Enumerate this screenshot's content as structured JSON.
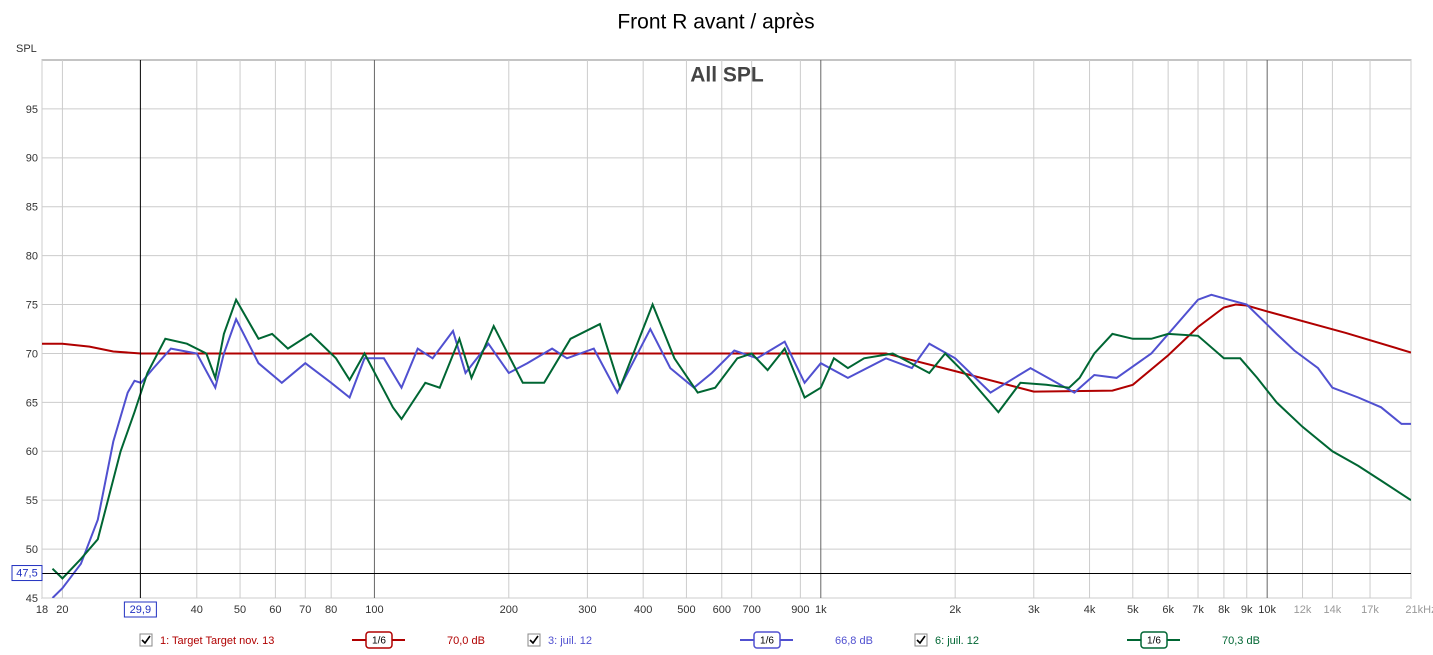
{
  "chart_data": {
    "type": "line",
    "title": "Front R avant / après",
    "annotation": "All SPL",
    "y_label": "SPL",
    "log_x": true,
    "grid": true,
    "xlim": [
      18,
      21000
    ],
    "ylim": [
      45,
      100
    ],
    "yticks": [
      45,
      50,
      55,
      60,
      65,
      70,
      75,
      80,
      85,
      90,
      95
    ],
    "xticks": [
      18,
      20,
      40,
      50,
      60,
      70,
      80,
      100,
      200,
      300,
      400,
      500,
      600,
      700,
      900,
      {
        "value": 1000,
        "label": "1k"
      },
      {
        "value": 2000,
        "label": "2k"
      },
      {
        "value": 3000,
        "label": "3k"
      },
      {
        "value": 4000,
        "label": "4k"
      },
      {
        "value": 5000,
        "label": "5k"
      },
      {
        "value": 6000,
        "label": "6k"
      },
      {
        "value": 7000,
        "label": "7k"
      },
      {
        "value": 8000,
        "label": "8k"
      },
      {
        "value": 9000,
        "label": "9k"
      },
      {
        "value": 10000,
        "label": "10k"
      },
      {
        "value": 12000,
        "label": "12k"
      },
      {
        "value": 14000,
        "label": "14k"
      },
      {
        "value": 17000,
        "label": "17k"
      },
      {
        "value": 21000,
        "label": "21kHz"
      }
    ],
    "cursor": {
      "x": {
        "value": 29.9,
        "label": "29,9"
      },
      "y": {
        "value": 47.5,
        "label": "47,5"
      }
    },
    "series": [
      {
        "name": "1: Target Target nov. 13",
        "color": "#b00000",
        "smoothing": "1/6",
        "level": "70,0 dB",
        "x": [
          18,
          20,
          23,
          26,
          30,
          40,
          100,
          1000,
          1400,
          2000,
          3000,
          4500,
          5000,
          6000,
          7000,
          8000,
          8500,
          9000,
          10000,
          15000,
          21000
        ],
        "values": [
          71,
          71,
          70.7,
          70.2,
          70,
          70,
          70,
          70,
          70,
          68.2,
          66.1,
          66.2,
          66.8,
          69.8,
          72.7,
          74.7,
          75,
          74.9,
          74.3,
          72.1,
          70.1
        ]
      },
      {
        "name": "3: juil. 12",
        "color": "#5050d0",
        "smoothing": "1/6",
        "level": "66,8 dB",
        "x": [
          19,
          20,
          22,
          24,
          26,
          28,
          29,
          30,
          32,
          35,
          40,
          44,
          46,
          49,
          55,
          62,
          70,
          80,
          88,
          95,
          105,
          115,
          125,
          135,
          150,
          160,
          180,
          200,
          220,
          250,
          270,
          310,
          350,
          415,
          460,
          520,
          570,
          640,
          720,
          830,
          920,
          1000,
          1150,
          1400,
          1600,
          1750,
          2000,
          2400,
          2950,
          3700,
          4100,
          4600,
          5500,
          7000,
          7500,
          8200,
          9000,
          10500,
          11500,
          13000,
          14000,
          16000,
          18000,
          20000,
          21000
        ],
        "values": [
          45,
          46,
          48.5,
          53,
          61,
          66,
          67.2,
          67,
          68.5,
          70.5,
          70,
          66.5,
          70,
          73.5,
          69,
          67,
          69,
          67,
          65.5,
          69.5,
          69.5,
          66.5,
          70.5,
          69.5,
          72.3,
          68,
          71,
          68,
          69,
          70.5,
          69.5,
          70.5,
          66,
          72.5,
          68.5,
          66.5,
          68,
          70.3,
          69.5,
          71.2,
          67,
          69,
          67.5,
          69.5,
          68.5,
          71,
          69.5,
          66,
          68.5,
          66,
          67.8,
          67.5,
          70,
          75.5,
          76,
          75.5,
          75,
          72,
          70.3,
          68.5,
          66.5,
          65.5,
          64.5,
          62.8,
          62.8
        ]
      },
      {
        "name": "6: juil. 12",
        "color": "#006633",
        "smoothing": "1/6",
        "level": "70,3 dB",
        "x": [
          19,
          20,
          22,
          24,
          27,
          29,
          31,
          34,
          38,
          42,
          44,
          46,
          49,
          55,
          59,
          64,
          72,
          82,
          88,
          95,
          110,
          115,
          130,
          140,
          155,
          165,
          185,
          215,
          240,
          275,
          320,
          355,
          420,
          470,
          530,
          580,
          650,
          700,
          760,
          830,
          920,
          1000,
          1070,
          1150,
          1250,
          1450,
          1750,
          1900,
          2100,
          2500,
          2800,
          3200,
          3600,
          3800,
          4100,
          4500,
          5000,
          5500,
          6000,
          7000,
          8000,
          8700,
          9500,
          10500,
          12000,
          14000,
          16000,
          18000,
          21000
        ],
        "values": [
          48,
          47,
          49,
          51,
          60,
          64,
          68,
          71.5,
          71,
          70,
          67.5,
          72,
          75.5,
          71.5,
          72,
          70.5,
          72,
          69.5,
          67.3,
          70,
          64.5,
          63.3,
          67,
          66.5,
          71.5,
          67.5,
          72.8,
          67,
          67,
          71.5,
          73,
          66.5,
          75,
          69.5,
          66,
          66.5,
          69.5,
          70,
          68.3,
          70.5,
          65.5,
          66.5,
          69.5,
          68.5,
          69.5,
          70,
          68,
          70,
          68,
          64,
          67,
          66.8,
          66.5,
          67.5,
          70,
          72,
          71.5,
          71.5,
          72,
          71.8,
          69.5,
          69.5,
          67.5,
          65,
          62.5,
          60,
          58.5,
          57,
          55
        ]
      }
    ]
  }
}
